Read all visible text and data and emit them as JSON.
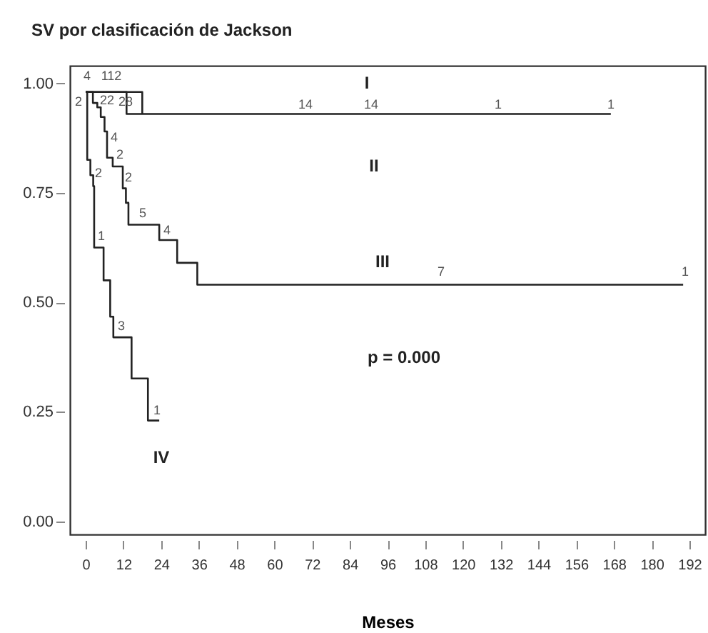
{
  "chart_data": {
    "type": "step",
    "title": "SV por clasificación de Jackson",
    "xlabel": "Meses",
    "xlim": [
      -5,
      197
    ],
    "ylim": [
      -0.03,
      1.04
    ],
    "xticks": [
      0,
      12,
      24,
      36,
      48,
      60,
      72,
      84,
      96,
      108,
      120,
      132,
      144,
      156,
      168,
      180,
      192
    ],
    "yticks": [
      {
        "value": 0,
        "label": "0.00"
      },
      {
        "value": 0.25,
        "label": "0.25"
      },
      {
        "value": 0.5,
        "label": "0.50"
      },
      {
        "value": 0.75,
        "label": "0.75"
      },
      {
        "value": 1,
        "label": "1.00"
      }
    ],
    "series": [
      {
        "color": "#222222",
        "x": [
          0,
          18,
          18
        ],
        "values": [
          0.98,
          0.98,
          0.93
        ]
      },
      {
        "color": "#222222",
        "x": [
          0,
          13,
          167
        ],
        "values": [
          0.98,
          0.93,
          0.93
        ]
      },
      {
        "color": "#222222",
        "x": [
          0,
          2.3,
          3.7,
          4.8,
          6,
          6.8,
          8.6,
          11.8,
          12.8,
          13.6,
          23.4,
          29.1,
          35.5,
          190
        ],
        "values": [
          0.98,
          0.955,
          0.945,
          0.923,
          0.89,
          0.83,
          0.81,
          0.76,
          0.727,
          0.677,
          0.642,
          0.59,
          0.54,
          0.54
        ]
      },
      {
        "color": "#222222",
        "x": [
          0,
          0.5,
          1.5,
          2.4,
          2.7,
          5.7,
          7.8,
          8.8,
          14.6,
          19.8,
          23.4
        ],
        "values": [
          0.98,
          0.825,
          0.79,
          0.765,
          0.625,
          0.55,
          0.467,
          0.42,
          0.326,
          0.23,
          0.23
        ]
      }
    ],
    "annotations": [
      "I",
      "II",
      "III",
      "IV",
      "4",
      "112",
      "2",
      "22",
      "28",
      "4",
      "2",
      "2",
      "5",
      "4",
      "14",
      "14",
      "1",
      "1",
      "7",
      "1",
      "2",
      "1",
      "3",
      "1",
      "p = 0.000"
    ]
  }
}
